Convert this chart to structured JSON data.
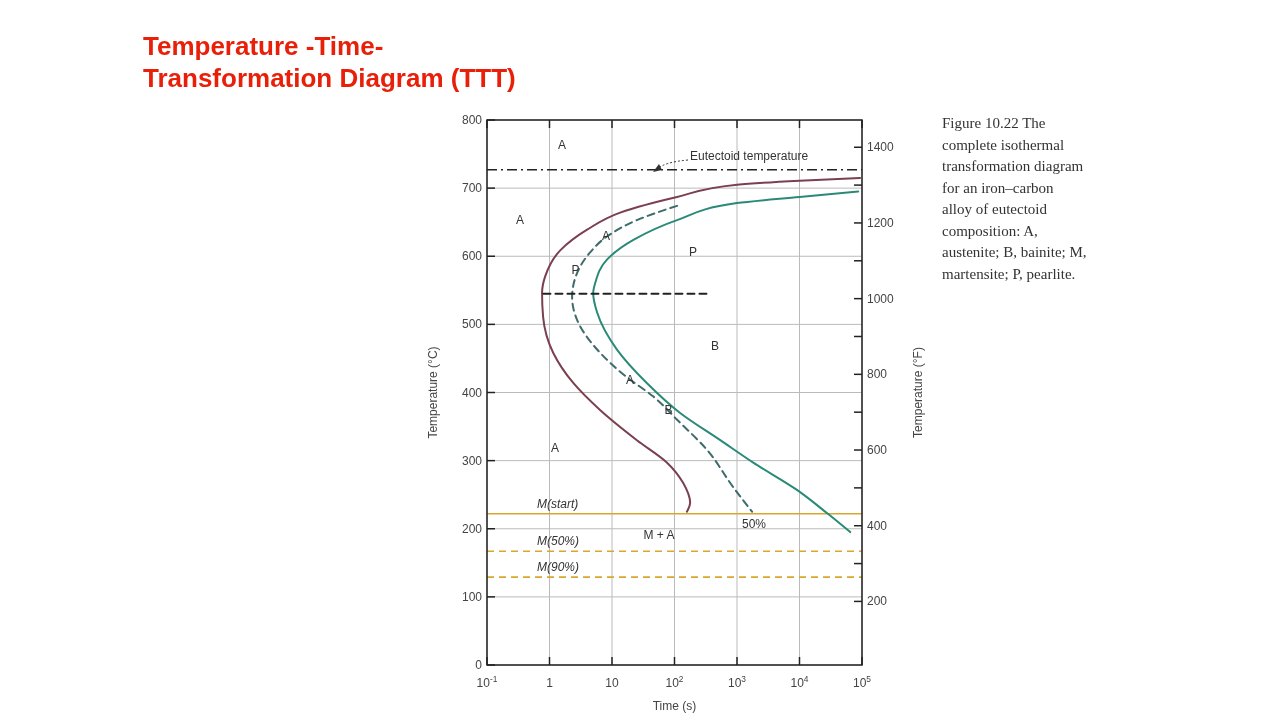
{
  "chart_data": {
    "type": "line",
    "title": "Temperature -Time-\nTransformation Diagram (TTT)",
    "xlabel": "Time (s)",
    "ylabel": "Temperature (°C)",
    "y2label": "Temperature (°F)",
    "log": "x",
    "grid": true,
    "marker": "none",
    "xlim": [
      0.1,
      100000
    ],
    "xticks": [
      {
        "value": 0.1,
        "label": "10$^{-1}$"
      },
      1,
      10,
      {
        "value": 100,
        "label": "10$^{2}$"
      },
      {
        "value": 1000,
        "label": "10$^{3}$"
      },
      {
        "value": 10000,
        "label": "10$^{4}$"
      },
      {
        "value": 100000,
        "label": "10$^{5}$"
      }
    ],
    "ylim": [
      0,
      800
    ],
    "yticks": [
      0,
      100,
      200,
      300,
      400,
      500,
      600,
      700,
      800
    ],
    "y2lim": [
      32,
      1472
    ],
    "y2ticks": [
      200,
      {
        "value": 300,
        "label": null
      },
      400,
      {
        "value": 500,
        "label": null
      },
      600,
      {
        "value": 700,
        "label": null
      },
      800,
      {
        "value": 900,
        "label": null
      },
      1000,
      {
        "value": 1100,
        "label": null
      },
      1200,
      {
        "value": 1300,
        "label": null
      },
      1400
    ],
    "series": [
      {
        "color": "#7b4050",
        "line_style": "solid",
        "x": [
          93000,
          10000,
          1000,
          110,
          13.5,
          4,
          1.5,
          0.85,
          0.76,
          0.79,
          1.15,
          2.4,
          6.5,
          25,
          76,
          138,
          178,
          158
        ],
        "values": [
          715,
          711,
          705,
          687,
          664,
          639,
          609,
          570,
          546,
          511,
          458,
          414,
          374,
          330,
          297,
          267,
          238,
          225
        ]
      },
      {
        "color": "#3e6b6b",
        "line_style": "dashed",
        "x": [
          110,
          25,
          8.3,
          4.5,
          2.75,
          2.3,
          2.75,
          6.5,
          17,
          46,
          110,
          330,
          870,
          1740
        ],
        "values": [
          674,
          653,
          629,
          606,
          575,
          540,
          507,
          458,
          423,
          394,
          360,
          316,
          261,
          225
        ]
      },
      {
        "color": "#2a8a78",
        "line_style": "solid",
        "x": [
          87000,
          10000,
          1000,
          110,
          22,
          8.3,
          5.4,
          5,
          5.8,
          12,
          36,
          123,
          540,
          1820,
          9100,
          27500,
          65000
        ],
        "values": [
          695,
          687,
          678,
          653,
          624,
          595,
          561,
          546,
          517,
          463,
          414,
          370,
          330,
          297,
          257,
          223,
          195
        ]
      },
      {
        "color": "#222222",
        "line_style": "dashed",
        "x": [
          0.8,
          370
        ],
        "values": [
          545,
          545
        ]
      }
    ],
    "ref_lines": [
      {
        "axis": "y",
        "value": 727,
        "label": "Eutectoid temperature",
        "color": "#222222",
        "line_style": "dashdot"
      },
      {
        "axis": "y",
        "value": 222,
        "label": "M(start)",
        "color": "#d9a62e",
        "line_style": "solid"
      },
      {
        "axis": "y",
        "value": 167,
        "label": "M(50%)",
        "color": "#d9a62e",
        "line_style": "dashed"
      },
      {
        "axis": "y",
        "value": 129,
        "label": "M(90%)",
        "color": "#d9a62e",
        "line_style": "dashed"
      }
    ],
    "annotations": [
      "A",
      "A",
      {
        "text": "A",
        "x": 8,
        "y": 630
      },
      {
        "text": "P",
        "x": 2.6,
        "y": 580
      },
      "P",
      {
        "text": "A",
        "x": 19.5,
        "y": 418
      },
      {
        "text": "B",
        "x": 80,
        "y": 374
      },
      "B",
      "A",
      "M + A",
      "50%",
      "Figure 10.22 The\ncomplete isothermal\ntransformation diagram\nfor an iron–carbon\nalloy of eutectoid\ncomposition: A,\naustenite; B, bainite; M,\nmartensite; P, pearlite."
    ]
  }
}
